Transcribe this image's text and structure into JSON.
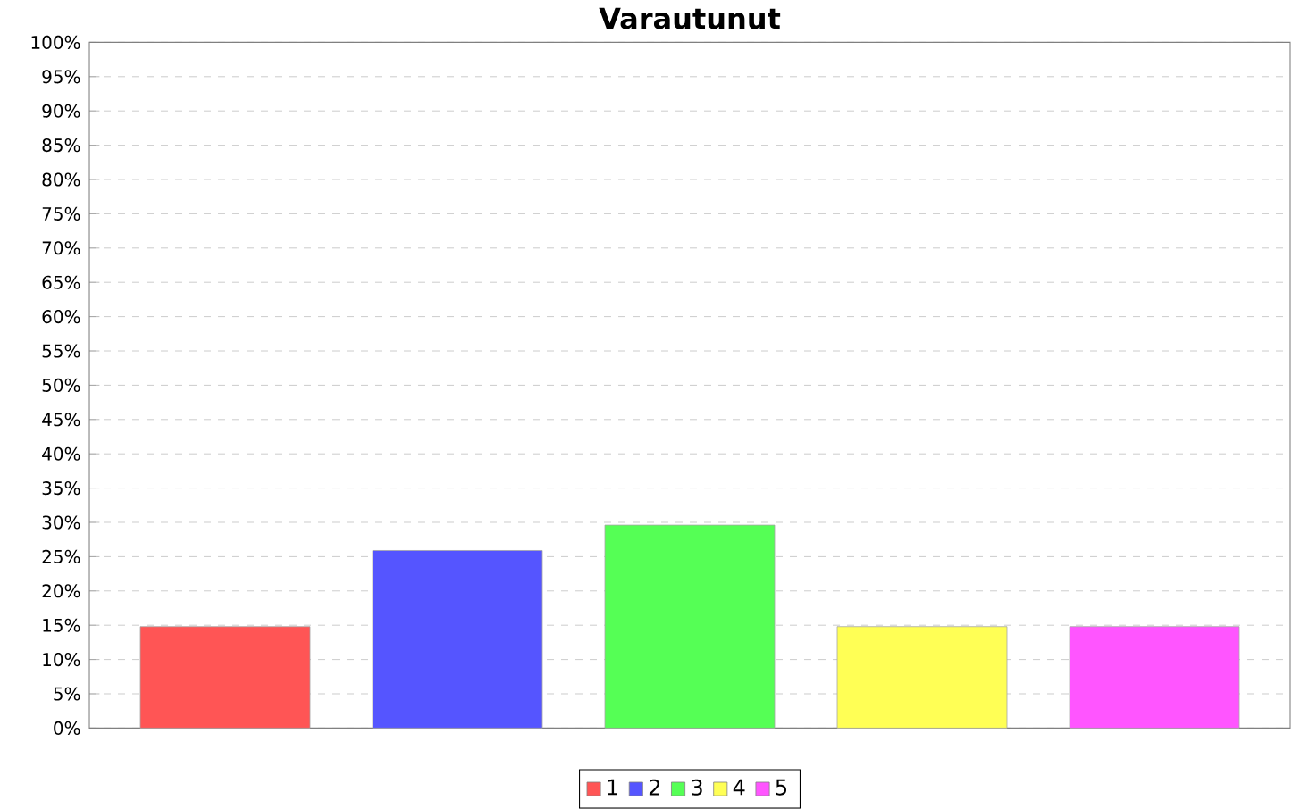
{
  "chart_data": {
    "type": "bar",
    "title": "Varautunut",
    "categories": [
      null
    ],
    "series": [
      {
        "name": "1",
        "color": "#ff5555",
        "values": [
          14.8
        ]
      },
      {
        "name": "2",
        "color": "#5555ff",
        "values": [
          25.9
        ]
      },
      {
        "name": "3",
        "color": "#55ff55",
        "values": [
          29.6
        ]
      },
      {
        "name": "4",
        "color": "#ffff55",
        "values": [
          14.8
        ]
      },
      {
        "name": "5",
        "color": "#ff55ff",
        "values": [
          14.8
        ]
      }
    ],
    "ylim": [
      0,
      100
    ],
    "yticks": [
      {
        "value": 0,
        "label": "0%"
      },
      {
        "value": 5,
        "label": "5%"
      },
      {
        "value": 10,
        "label": "10%"
      },
      {
        "value": 15,
        "label": "15%"
      },
      {
        "value": 20,
        "label": "20%"
      },
      {
        "value": 25,
        "label": "25%"
      },
      {
        "value": 30,
        "label": "30%"
      },
      {
        "value": 35,
        "label": "35%"
      },
      {
        "value": 40,
        "label": "40%"
      },
      {
        "value": 45,
        "label": "45%"
      },
      {
        "value": 50,
        "label": "50%"
      },
      {
        "value": 55,
        "label": "55%"
      },
      {
        "value": 60,
        "label": "60%"
      },
      {
        "value": 65,
        "label": "65%"
      },
      {
        "value": 70,
        "label": "70%"
      },
      {
        "value": 75,
        "label": "75%"
      },
      {
        "value": 80,
        "label": "80%"
      },
      {
        "value": 85,
        "label": "85%"
      },
      {
        "value": 90,
        "label": "90%"
      },
      {
        "value": 95,
        "label": "95%"
      },
      {
        "value": 100,
        "label": "100%"
      }
    ],
    "grid": "y",
    "legend": "bottom"
  }
}
